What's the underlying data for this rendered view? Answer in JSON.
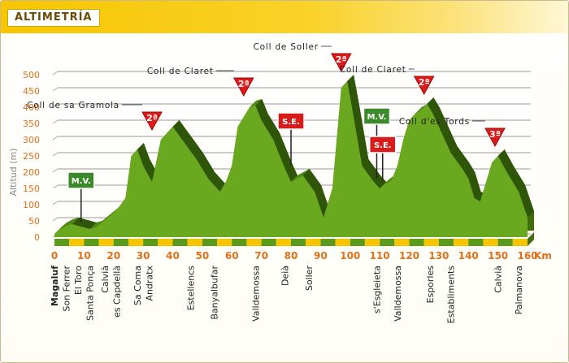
{
  "header": {
    "title": "ALTIMETRÍA"
  },
  "chart_data": {
    "type": "area",
    "ylabel": "Altitud (m)",
    "xunit": "Km",
    "ylim": [
      0,
      500
    ],
    "xlim": [
      0,
      160
    ],
    "yticks": [
      "0",
      "50",
      "100",
      "150",
      "200",
      "250",
      "300",
      "350",
      "400",
      "450",
      "500"
    ],
    "xticks": [
      "0",
      "10",
      "20",
      "30",
      "40",
      "50",
      "60",
      "70",
      "80",
      "90",
      "100",
      "110",
      "120",
      "130",
      "140",
      "150",
      "160"
    ],
    "profile": {
      "km": [
        0,
        2,
        4,
        6,
        8,
        10,
        12,
        14,
        16,
        18,
        20,
        22,
        24,
        26,
        28,
        30,
        33,
        36,
        40,
        44,
        48,
        52,
        54,
        56,
        58,
        60,
        62,
        64,
        66,
        68,
        70,
        74,
        78,
        80,
        84,
        88,
        91,
        94,
        97,
        99,
        101,
        104,
        108,
        110,
        112,
        114,
        116,
        118,
        120,
        122,
        124,
        126,
        128,
        131,
        134,
        138,
        140,
        142,
        144,
        146,
        148,
        150,
        153,
        157,
        160
      ],
      "altitude": [
        10,
        25,
        35,
        40,
        35,
        30,
        25,
        30,
        45,
        60,
        75,
        95,
        120,
        250,
        270,
        220,
        170,
        300,
        340,
        290,
        240,
        180,
        160,
        140,
        170,
        220,
        340,
        370,
        400,
        405,
        360,
        300,
        210,
        170,
        190,
        140,
        60,
        150,
        460,
        480,
        380,
        220,
        170,
        150,
        165,
        175,
        220,
        300,
        360,
        380,
        390,
        410,
        380,
        320,
        260,
        210,
        180,
        120,
        110,
        170,
        230,
        250,
        200,
        140,
        60
      ]
    },
    "climbs": [
      {
        "name": "Coll de sa Gramola",
        "category": "2ª"
      },
      {
        "name": "Coll de Claret",
        "category": "2ª"
      },
      {
        "name": "Coll de Soller",
        "category": "2ª"
      },
      {
        "name": "Coll de Claret",
        "category": "2ª"
      },
      {
        "name": "Coll d'es Tords",
        "category": "3ª"
      }
    ],
    "sprints": [
      {
        "label": "M.V.",
        "km": 9,
        "color": "#3a8a2a"
      },
      {
        "label": "S.E.",
        "km": 80,
        "color": "#d81c1c"
      },
      {
        "label": "M.V.",
        "km": 109,
        "color": "#3a8a2a"
      },
      {
        "label": "S.E.",
        "km": 111,
        "color": "#d81c1c"
      }
    ],
    "towns": [
      {
        "name": "Magaluf",
        "km": 0,
        "bold": true
      },
      {
        "name": "Son Ferrer",
        "km": 4
      },
      {
        "name": "El Toro",
        "km": 8
      },
      {
        "name": "Santa Ponça",
        "km": 12
      },
      {
        "name": "Calvià",
        "km": 17
      },
      {
        "name": "es Capdellà",
        "km": 21
      },
      {
        "name": "Sa Coma",
        "km": 28
      },
      {
        "name": "Andratx",
        "km": 32
      },
      {
        "name": "Estellencs",
        "km": 46
      },
      {
        "name": "Banyalbufar",
        "km": 54
      },
      {
        "name": "Valldemossa",
        "km": 68
      },
      {
        "name": "Deià",
        "km": 78
      },
      {
        "name": "Soller",
        "km": 86
      },
      {
        "name": "s'Esgleieta",
        "km": 109
      },
      {
        "name": "Valldemossa",
        "km": 116
      },
      {
        "name": "Esporles",
        "km": 127
      },
      {
        "name": "Establiments",
        "km": 134
      },
      {
        "name": "Calvià",
        "km": 150
      },
      {
        "name": "Palmanova",
        "km": 157
      }
    ],
    "colors": {
      "fill": "#6aa820",
      "fill_dark": "#3f6e0a",
      "stripe_green": "#5c9a1c",
      "stripe_yellow": "#f7c600",
      "tick": "#e0701a",
      "climb_marker": "#e01818"
    }
  }
}
